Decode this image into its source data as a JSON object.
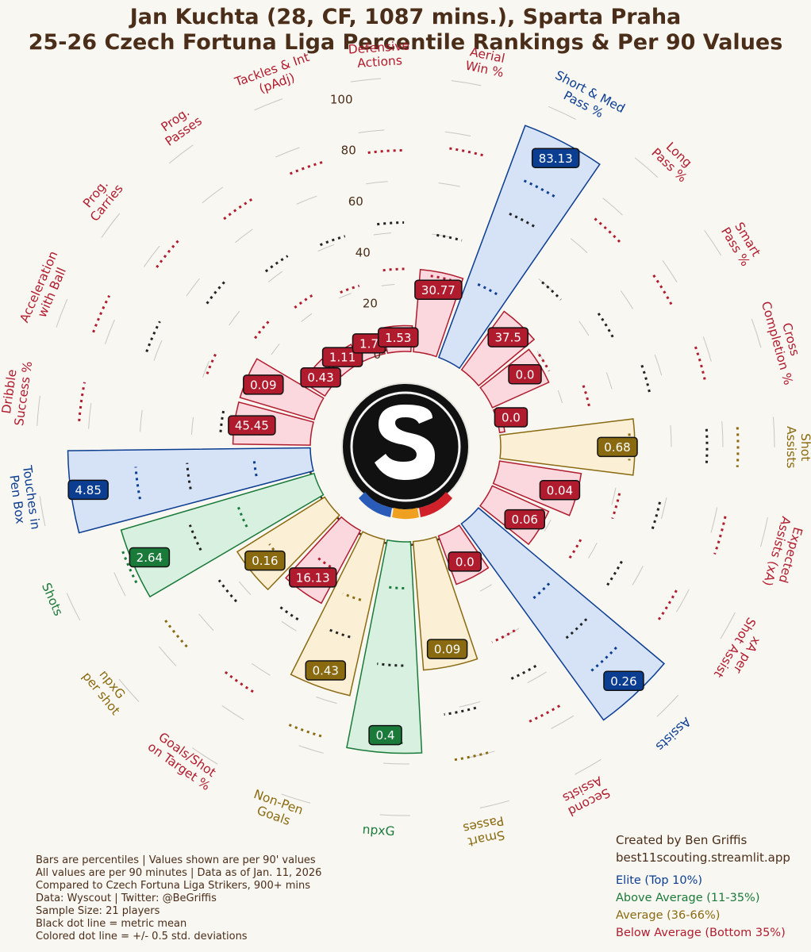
{
  "header": {
    "title_line1": "Jan Kuchta (28, CF, 1087 mins.), Sparta Praha",
    "title_line2": "25-26 Czech Fortuna Liga Percentile Rankings & Per 90 Values"
  },
  "colors": {
    "elite": "#0b3d91",
    "above_average": "#1a7a3a",
    "average": "#8a6a10",
    "below_average": "#b01c2e",
    "text": "#4a2e1a",
    "background": "#f9f7f2"
  },
  "chart_data": {
    "type": "radial_bar",
    "title": "Jan Kuchta (28, CF, 1087 mins.), Sparta Praha",
    "subtitle": "25-26 Czech Fortuna Liga Percentile Rankings & Per 90 Values",
    "radial_axis": {
      "range": [
        0,
        100
      ],
      "ticks": [
        0,
        20,
        40,
        60,
        80,
        100
      ]
    },
    "center_logo": "sparta-praha-logo",
    "metrics": [
      {
        "label": "npxG",
        "percentile": 82,
        "value": "0.4",
        "tier": "above_average",
        "mean": 48,
        "sd_low": 18,
        "sd_high": 78
      },
      {
        "label": "Non-Pen\nGoals",
        "percentile": 62,
        "value": "0.43",
        "tier": "average",
        "mean": 40,
        "sd_low": 25,
        "sd_high": 80
      },
      {
        "label": "Goals/Shot\non Target %",
        "percentile": 32,
        "value": "16.13",
        "tier": "below_average",
        "mean": 42,
        "sd_low": 18,
        "sd_high": 75
      },
      {
        "label": "npxG\nper shot",
        "percentile": 40,
        "value": "0.16",
        "tier": "average",
        "mean": 52,
        "sd_low": 28,
        "sd_high": 78
      },
      {
        "label": "Shots",
        "percentile": 78,
        "value": "2.64",
        "tier": "above_average",
        "mean": 52,
        "sd_low": 32,
        "sd_high": 80
      },
      {
        "label": "Touches in\nPen Box",
        "percentile": 94,
        "value": "4.85",
        "tier": "elite",
        "mean": 48,
        "sd_low": 22,
        "sd_high": 68
      },
      {
        "label": "Dribble\nSuccess %",
        "percentile": 30,
        "value": "45.45",
        "tier": "below_average",
        "mean": 35,
        "sd_low": 20,
        "sd_high": 90
      },
      {
        "label": "Acceleration\nwith Ball",
        "percentile": 30,
        "value": "0.09",
        "tier": "below_average",
        "mean": 70,
        "sd_low": 45,
        "sd_high": 92
      },
      {
        "label": "Prog.\nCarries",
        "percentile": 10,
        "value": "0.43",
        "tier": "below_average",
        "mean": 58,
        "sd_low": 35,
        "sd_high": 82
      },
      {
        "label": "Prog.\nPasses",
        "percentile": 8,
        "value": "1.11",
        "tier": "below_average",
        "mean": 50,
        "sd_low": 32,
        "sd_high": 76
      },
      {
        "label": "Tackles & Int\n(pAdj)",
        "percentile": 5,
        "value": "1.7",
        "tier": "below_average",
        "mean": 48,
        "sd_low": 28,
        "sd_high": 78
      },
      {
        "label": "Defensive\nActions",
        "percentile": 10,
        "value": "1.53",
        "tier": "below_average",
        "mean": 50,
        "sd_low": 32,
        "sd_high": 78
      },
      {
        "label": "Aerial\nWin %",
        "percentile": 32,
        "value": "30.77",
        "tier": "below_average",
        "mean": 46,
        "sd_low": 30,
        "sd_high": 80
      },
      {
        "label": "Short & Med\nPass %",
        "percentile": 96,
        "value": "83.13",
        "tier": "elite",
        "mean": 62,
        "sd_low": 32,
        "sd_high": 76
      },
      {
        "label": "Long\nPass %",
        "percentile": 28,
        "value": "37.5",
        "tier": "below_average",
        "mean": 46,
        "sd_low": 20,
        "sd_high": 78
      },
      {
        "label": "Smart\nPass %",
        "percentile": 24,
        "value": "0.0",
        "tier": "below_average",
        "mean": 54,
        "sd_low": 26,
        "sd_high": 80
      },
      {
        "label": "Cross\nCompletion %",
        "percentile": 2,
        "value": "0.0",
        "tier": "below_average",
        "mean": 60,
        "sd_low": 36,
        "sd_high": 82
      },
      {
        "label": "Shot\nAssists",
        "percentile": 52,
        "value": "0.68",
        "tier": "average",
        "mean": 80,
        "sd_low": 50,
        "sd_high": 92
      },
      {
        "label": "Expected\nAssists (xA)",
        "percentile": 32,
        "value": "0.04",
        "tier": "below_average",
        "mean": 64,
        "sd_low": 48,
        "sd_high": 90
      },
      {
        "label": "xA per\nShot Assist",
        "percentile": 24,
        "value": "0.06",
        "tier": "below_average",
        "mean": 58,
        "sd_low": 40,
        "sd_high": 82
      },
      {
        "label": "Assists",
        "percentile": 94,
        "value": "0.26",
        "tier": "elite",
        "mean": 60,
        "sd_low": 40,
        "sd_high": 76
      },
      {
        "label": "Second\nAssists",
        "percentile": 20,
        "value": "0.0",
        "tier": "below_average",
        "mean": 62,
        "sd_low": 46,
        "sd_high": 80
      },
      {
        "label": "Smart\nPasses",
        "percentile": 50,
        "value": "0.09",
        "tier": "average",
        "mean": 68,
        "sd_low": 45,
        "sd_high": 86
      }
    ]
  },
  "notes": [
    "Bars are percentiles | Values shown are per 90' values",
    "All values are per 90 minutes | Data as of Jan. 11, 2026",
    "Compared to Czech Fortuna Liga Strikers, 900+ mins",
    "Data: Wyscout | Twitter: @BeGriffis",
    "Sample Size: 21 players",
    "Black dot line = metric mean",
    "Colored dot line = +/- 0.5 std. deviations"
  ],
  "credit": {
    "line1": "Created by Ben Griffis",
    "line2": "best11scouting.streamlit.app"
  },
  "legend": {
    "elite": "Elite (Top 10%)",
    "above_average": "Above Average (11-35%)",
    "average": "Average (36-66%)",
    "below_average": "Below Average (Bottom 35%)"
  }
}
